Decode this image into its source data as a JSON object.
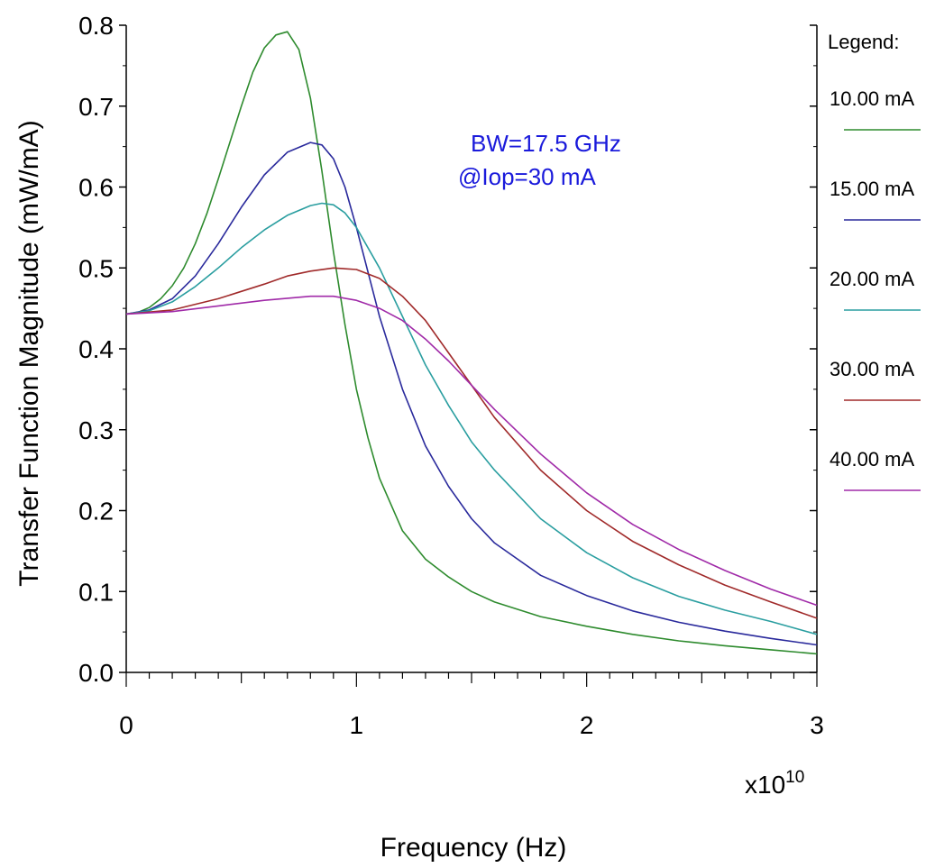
{
  "chart_data": {
    "type": "line",
    "xlabel": "Frequency (Hz)",
    "ylabel": "Transfer Function Magnitude (mW/mA)",
    "x_multiplier_base": "x10",
    "x_multiplier_exp": "10",
    "xlim": [
      0,
      3
    ],
    "ylim": [
      0,
      0.8
    ],
    "xticks": [
      "0",
      "1",
      "2",
      "3"
    ],
    "yticks": [
      "0.0",
      "0.1",
      "0.2",
      "0.3",
      "0.4",
      "0.5",
      "0.6",
      "0.7",
      "0.8"
    ],
    "grid": false,
    "legend_title": "Legend:",
    "legend_position": "right",
    "annotation": [
      "BW=17.5 GHz",
      "@Iop=30 mA"
    ],
    "annotation_color": "#1a1adb",
    "series": [
      {
        "name": "10.00 mA",
        "color": "#2e8b2e",
        "points": [
          [
            0,
            0.443
          ],
          [
            0.05,
            0.445
          ],
          [
            0.1,
            0.451
          ],
          [
            0.15,
            0.462
          ],
          [
            0.2,
            0.478
          ],
          [
            0.25,
            0.5
          ],
          [
            0.3,
            0.53
          ],
          [
            0.35,
            0.567
          ],
          [
            0.4,
            0.61
          ],
          [
            0.45,
            0.655
          ],
          [
            0.5,
            0.7
          ],
          [
            0.55,
            0.742
          ],
          [
            0.6,
            0.772
          ],
          [
            0.65,
            0.788
          ],
          [
            0.7,
            0.792
          ],
          [
            0.75,
            0.77
          ],
          [
            0.8,
            0.71
          ],
          [
            0.85,
            0.62
          ],
          [
            0.9,
            0.52
          ],
          [
            0.95,
            0.43
          ],
          [
            1.0,
            0.35
          ],
          [
            1.05,
            0.29
          ],
          [
            1.1,
            0.24
          ],
          [
            1.2,
            0.175
          ],
          [
            1.3,
            0.14
          ],
          [
            1.4,
            0.118
          ],
          [
            1.5,
            0.1
          ],
          [
            1.6,
            0.087
          ],
          [
            1.8,
            0.069
          ],
          [
            2.0,
            0.057
          ],
          [
            2.2,
            0.047
          ],
          [
            2.4,
            0.039
          ],
          [
            2.6,
            0.033
          ],
          [
            2.8,
            0.028
          ],
          [
            3.0,
            0.023
          ]
        ]
      },
      {
        "name": "15.00 mA",
        "color": "#2a2a9c",
        "points": [
          [
            0,
            0.443
          ],
          [
            0.1,
            0.448
          ],
          [
            0.2,
            0.462
          ],
          [
            0.3,
            0.49
          ],
          [
            0.4,
            0.53
          ],
          [
            0.5,
            0.575
          ],
          [
            0.6,
            0.615
          ],
          [
            0.7,
            0.643
          ],
          [
            0.8,
            0.655
          ],
          [
            0.85,
            0.652
          ],
          [
            0.9,
            0.635
          ],
          [
            0.95,
            0.6
          ],
          [
            1.0,
            0.55
          ],
          [
            1.05,
            0.495
          ],
          [
            1.1,
            0.44
          ],
          [
            1.2,
            0.35
          ],
          [
            1.3,
            0.28
          ],
          [
            1.4,
            0.23
          ],
          [
            1.5,
            0.19
          ],
          [
            1.6,
            0.16
          ],
          [
            1.8,
            0.12
          ],
          [
            2.0,
            0.095
          ],
          [
            2.2,
            0.076
          ],
          [
            2.4,
            0.062
          ],
          [
            2.6,
            0.051
          ],
          [
            2.8,
            0.042
          ],
          [
            3.0,
            0.034
          ]
        ]
      },
      {
        "name": "20.00 mA",
        "color": "#2a9ea0",
        "points": [
          [
            0,
            0.443
          ],
          [
            0.1,
            0.447
          ],
          [
            0.2,
            0.458
          ],
          [
            0.3,
            0.477
          ],
          [
            0.4,
            0.5
          ],
          [
            0.5,
            0.525
          ],
          [
            0.6,
            0.547
          ],
          [
            0.7,
            0.565
          ],
          [
            0.8,
            0.577
          ],
          [
            0.85,
            0.58
          ],
          [
            0.9,
            0.578
          ],
          [
            0.95,
            0.568
          ],
          [
            1.0,
            0.55
          ],
          [
            1.1,
            0.5
          ],
          [
            1.2,
            0.44
          ],
          [
            1.3,
            0.38
          ],
          [
            1.4,
            0.33
          ],
          [
            1.5,
            0.285
          ],
          [
            1.6,
            0.25
          ],
          [
            1.8,
            0.19
          ],
          [
            2.0,
            0.148
          ],
          [
            2.2,
            0.117
          ],
          [
            2.4,
            0.094
          ],
          [
            2.6,
            0.077
          ],
          [
            2.8,
            0.063
          ],
          [
            3.0,
            0.047
          ]
        ]
      },
      {
        "name": "30.00 mA",
        "color": "#a02a2a",
        "points": [
          [
            0,
            0.443
          ],
          [
            0.2,
            0.448
          ],
          [
            0.4,
            0.462
          ],
          [
            0.6,
            0.48
          ],
          [
            0.7,
            0.49
          ],
          [
            0.8,
            0.496
          ],
          [
            0.9,
            0.5
          ],
          [
            1.0,
            0.498
          ],
          [
            1.1,
            0.487
          ],
          [
            1.2,
            0.465
          ],
          [
            1.3,
            0.435
          ],
          [
            1.4,
            0.395
          ],
          [
            1.5,
            0.355
          ],
          [
            1.6,
            0.315
          ],
          [
            1.8,
            0.25
          ],
          [
            2.0,
            0.2
          ],
          [
            2.2,
            0.162
          ],
          [
            2.4,
            0.133
          ],
          [
            2.6,
            0.108
          ],
          [
            2.8,
            0.087
          ],
          [
            3.0,
            0.067
          ]
        ]
      },
      {
        "name": "40.00 mA",
        "color": "#a02aa8",
        "points": [
          [
            0,
            0.443
          ],
          [
            0.2,
            0.446
          ],
          [
            0.4,
            0.453
          ],
          [
            0.6,
            0.46
          ],
          [
            0.8,
            0.465
          ],
          [
            0.9,
            0.465
          ],
          [
            1.0,
            0.46
          ],
          [
            1.1,
            0.45
          ],
          [
            1.2,
            0.435
          ],
          [
            1.3,
            0.412
          ],
          [
            1.4,
            0.385
          ],
          [
            1.5,
            0.355
          ],
          [
            1.6,
            0.325
          ],
          [
            1.8,
            0.27
          ],
          [
            2.0,
            0.222
          ],
          [
            2.2,
            0.183
          ],
          [
            2.4,
            0.152
          ],
          [
            2.6,
            0.126
          ],
          [
            2.8,
            0.103
          ],
          [
            3.0,
            0.083
          ]
        ]
      }
    ]
  }
}
